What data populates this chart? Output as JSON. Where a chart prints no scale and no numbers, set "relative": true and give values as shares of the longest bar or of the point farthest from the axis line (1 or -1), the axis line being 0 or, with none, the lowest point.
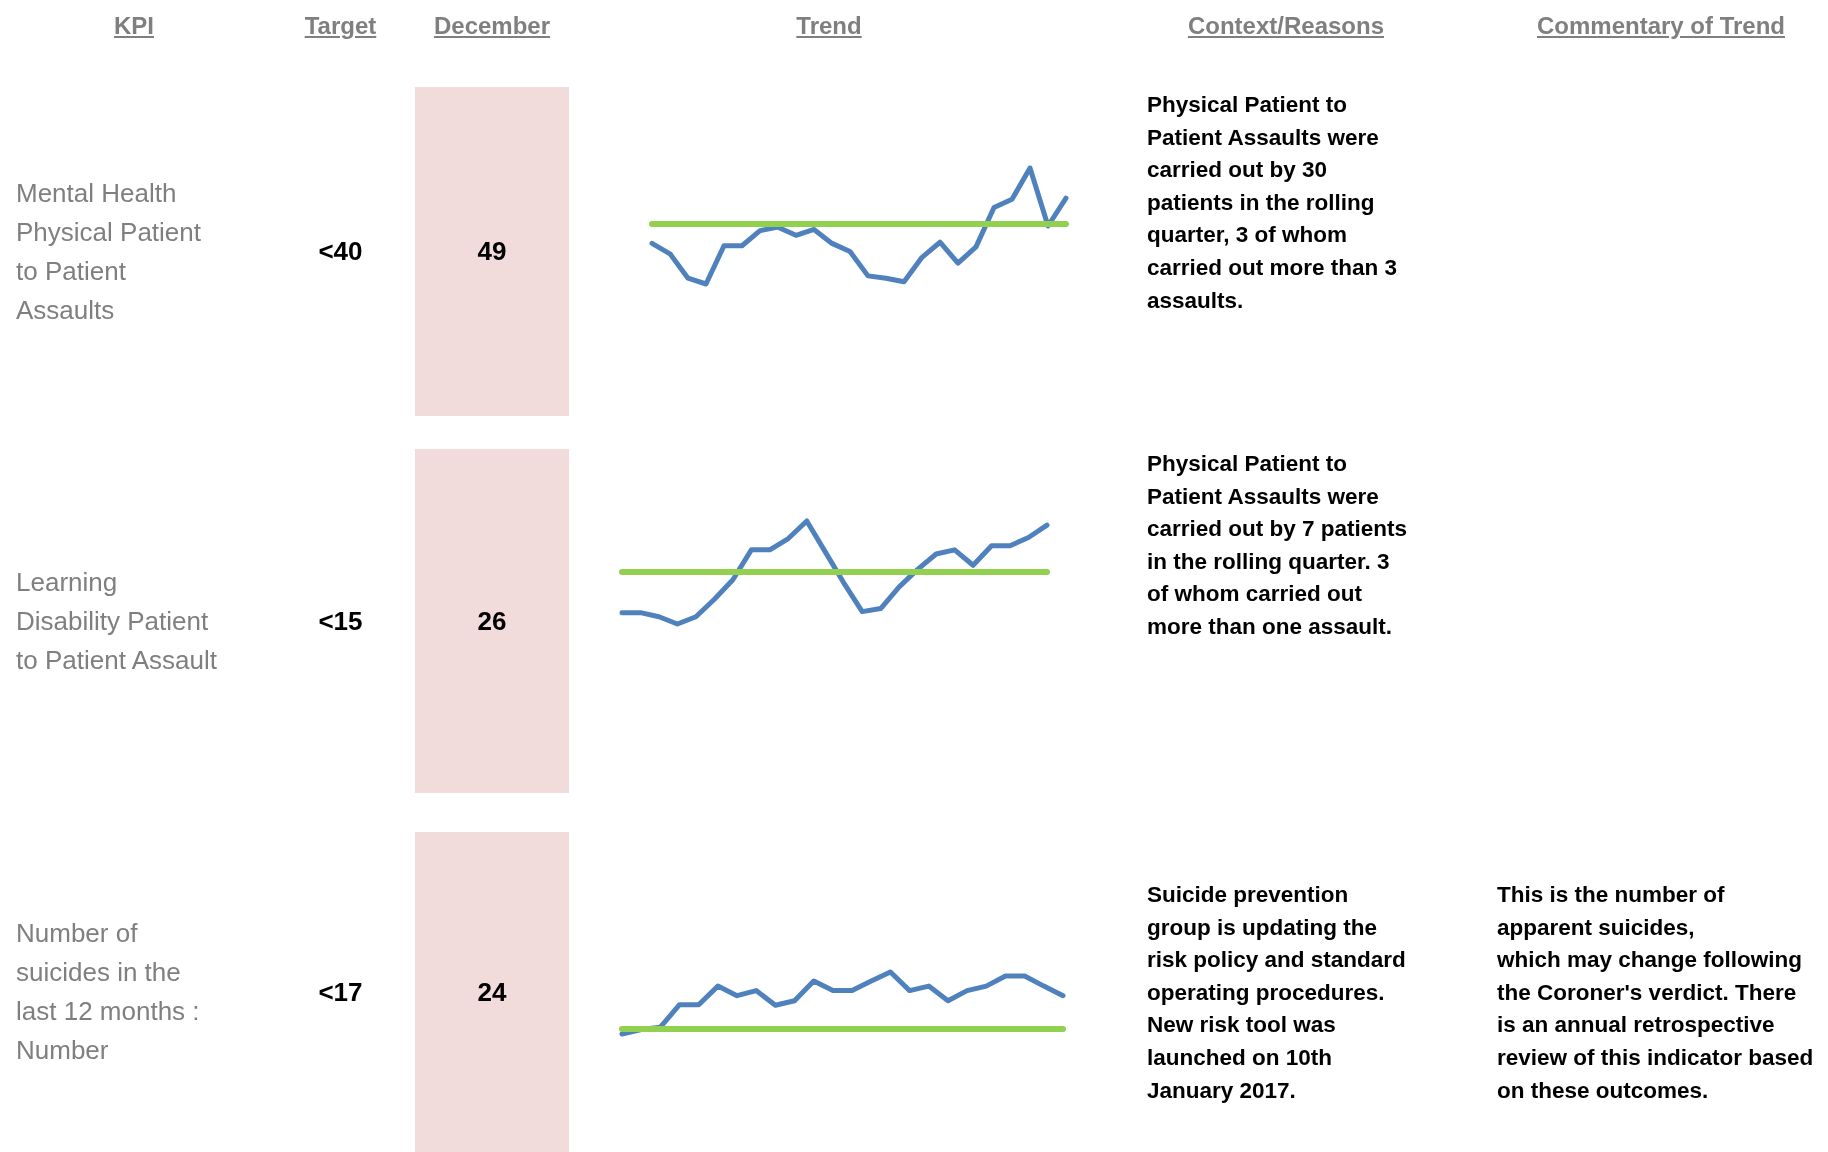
{
  "chart_data": [
    {
      "type": "other",
      "title": "KPI",
      "annotations": [
        "Mental Health\nPhysical Patient\nto Patient\nAssaults",
        "Learning\nDisability Patient\nto Patient Assault",
        "Number of\nsuicides in the\nlast 12 months :\nNumber"
      ]
    },
    {
      "type": "other",
      "title": "Target",
      "annotations": [
        "<40",
        "<15",
        "<17"
      ]
    },
    {
      "type": "other",
      "title": "December",
      "annotations": [
        "49",
        "26",
        "24"
      ],
      "colors": [
        "#f2dcdb",
        "#f2dcdb",
        "#f2dcdb"
      ]
    },
    {
      "type": "line",
      "title": "Trend",
      "relative": true,
      "categories": [
        null,
        null,
        null,
        null,
        null,
        null,
        null,
        null,
        null,
        null,
        null,
        null,
        null,
        null,
        null,
        null,
        null,
        null,
        null,
        null,
        null,
        null,
        null,
        null
      ],
      "color": "#4f81bd",
      "values": [
        0.35,
        0.26,
        0.05,
        0,
        0.33,
        0.33,
        0.46,
        0.49,
        0.42,
        0.47,
        0.35,
        0.28,
        0.07,
        0.05,
        0.02,
        0.23,
        0.36,
        0.18,
        0.32,
        0.66,
        0.73,
        1,
        0.5,
        0.74
      ],
      "ref_lines": [
        {
          "axis": "y",
          "value": 0.52,
          "color": "#92d050"
        }
      ]
    },
    {
      "type": "line",
      "relative": true,
      "categories": [
        null,
        null,
        null,
        null,
        null,
        null,
        null,
        null,
        null,
        null,
        null,
        null,
        null,
        null,
        null,
        null,
        null,
        null,
        null,
        null,
        null,
        null,
        null,
        null
      ],
      "color": "#4f81bd",
      "values": [
        0.11,
        0.11,
        0.07,
        0,
        0.07,
        0.24,
        0.43,
        0.72,
        0.72,
        0.83,
        1,
        0.7,
        0.4,
        0.12,
        0.15,
        0.36,
        0.53,
        0.68,
        0.72,
        0.57,
        0.76,
        0.76,
        0.84,
        0.96
      ],
      "ref_lines": [
        {
          "axis": "y",
          "value": 0.51,
          "color": "#92d050"
        }
      ]
    },
    {
      "type": "line",
      "relative": true,
      "categories": [
        null,
        null,
        null,
        null,
        null,
        null,
        null,
        null,
        null,
        null,
        null,
        null,
        null,
        null,
        null,
        null,
        null,
        null,
        null,
        null,
        null,
        null,
        null,
        null
      ],
      "color": "#4f81bd",
      "values": [
        -0.1,
        -0.02,
        0.02,
        0.42,
        0.42,
        0.75,
        0.58,
        0.67,
        0.41,
        0.49,
        0.84,
        0.67,
        0.67,
        0.84,
        1,
        0.67,
        0.75,
        0.49,
        0.67,
        0.75,
        0.93,
        0.93,
        0.75,
        0.58
      ],
      "ref_lines": [
        {
          "axis": "y",
          "value": 0,
          "color": "#92d050"
        }
      ]
    },
    {
      "type": "other",
      "title": "Context/Reasons",
      "annotations": [
        "Physical Patient to Patient Assaults were carried out by 30 patients in the rolling quarter, 3 of whom carried out more than 3 assaults.",
        "Physical Patient to Patient Assaults were carried out by 7 patients in the rolling quarter. 3 of whom carried out more than one assault.",
        "Suicide prevention group is updating the risk policy and standard operating procedures. New risk tool was launched on 10th January 2017."
      ]
    },
    {
      "type": "other",
      "title": "Commentary of Trend",
      "annotations": [
        "This is the number of apparent suicides,\nwhich may change following the Coroner's verdict. There is an annual retrospective review of this indicator based on these outcomes."
      ]
    }
  ]
}
